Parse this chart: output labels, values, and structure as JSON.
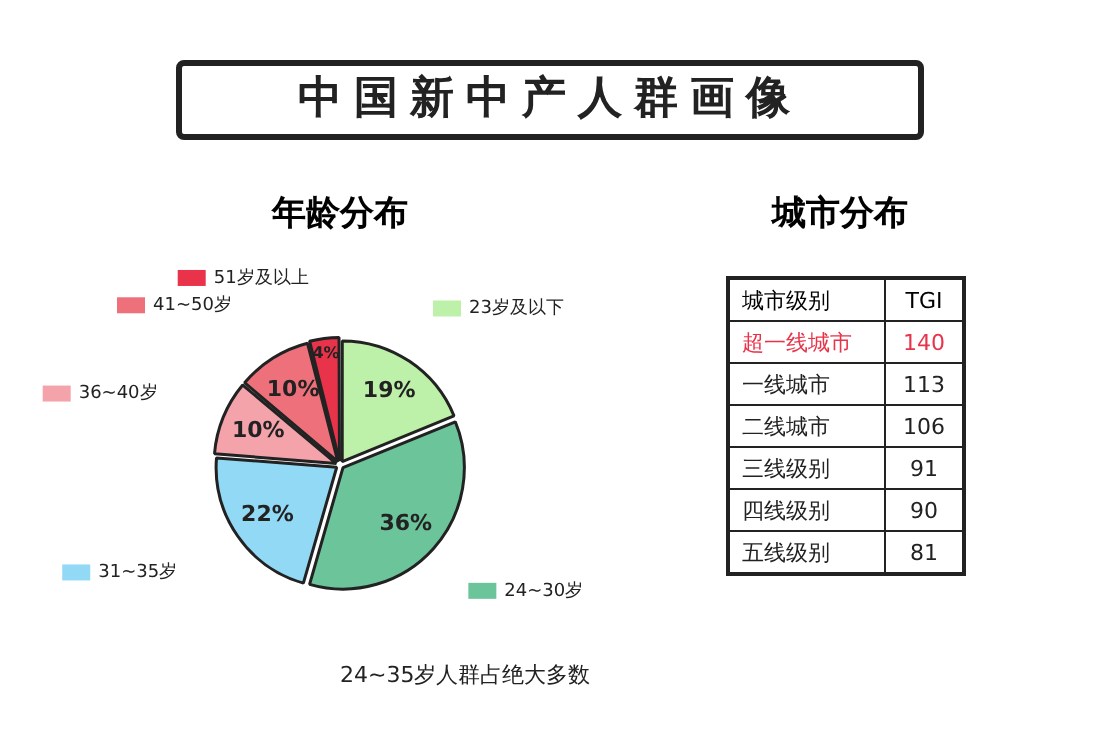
{
  "chart_data": [
    {
      "type": "pie",
      "title": "中国新中产人群画像",
      "subtitle": "年龄分布",
      "categories": [
        "23岁及以下",
        "24~30岁",
        "31~35岁",
        "36~40岁",
        "41~50岁",
        "51岁及以上"
      ],
      "values": [
        19,
        36,
        22,
        10,
        10,
        4
      ],
      "value_labels": [
        "19%",
        "36%",
        "22%",
        "10%",
        "10%",
        "4%"
      ],
      "colors": [
        "#bdf0a9",
        "#6cc49b",
        "#92d9f5",
        "#f4a3ab",
        "#ee707b",
        "#e8334a"
      ],
      "legend": "left",
      "annotations": [
        "24~35岁人群占绝大多数"
      ]
    },
    {
      "type": "other",
      "title": "城市分布",
      "xlabel": "城市级别",
      "ylabel": "TGI",
      "categories": [
        "超一线城市",
        "一线城市",
        "二线城市",
        "三线级别",
        "四线级别",
        "五线级别"
      ],
      "values": [
        140,
        113,
        106,
        91,
        90,
        81
      ],
      "colors": [
        "#e8334a",
        "#222222",
        "#222222",
        "#222222",
        "#222222",
        "#222222"
      ],
      "data_labels": true
    }
  ]
}
